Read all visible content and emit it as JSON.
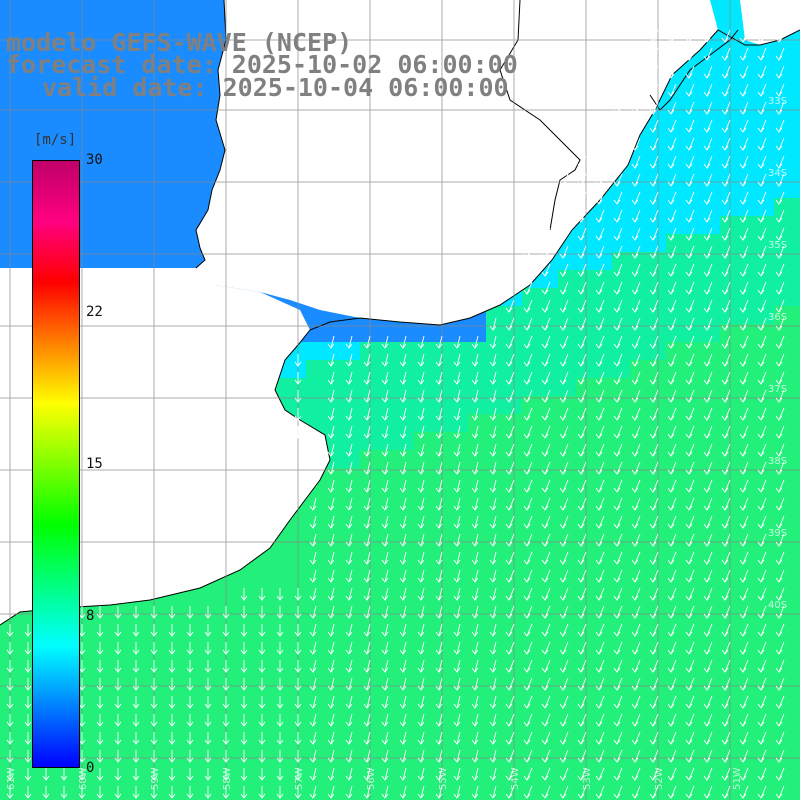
{
  "title": {
    "line1": "modelo GEFS-WAVE (NCEP)",
    "line2": "forecast date: 2025-10-02 06:00:00",
    "line3": "valid date: 2025-10-04 06:00:00"
  },
  "colorbar": {
    "unit": "[m/s]",
    "min": 0,
    "max": 30,
    "ticks": [
      "30",
      "22",
      "15",
      "8",
      "0"
    ],
    "tick_values": [
      30,
      22,
      15,
      8,
      0
    ],
    "stops": [
      "#0000ff",
      "#0080ff",
      "#00ffff",
      "#00ff80",
      "#00ff00",
      "#80ff00",
      "#ffff00",
      "#ff8000",
      "#ff0000",
      "#ff0080",
      "#c0006a"
    ]
  },
  "map": {
    "lon_labels": [
      "61W",
      "60W",
      "59W",
      "58W",
      "57W",
      "56W",
      "55W",
      "54W",
      "53W",
      "52W",
      "51W"
    ],
    "lat_labels": [
      "33S",
      "34S",
      "35S",
      "36S",
      "37S",
      "38S",
      "39S",
      "40S"
    ],
    "colors": {
      "land": "#ffffff",
      "coast": "#000000",
      "grid": "#888888",
      "arrow": "#ffffff",
      "shallow_blue": "#1a8cff",
      "cyan": "#00e8ff",
      "green": "#22f07a"
    }
  }
}
